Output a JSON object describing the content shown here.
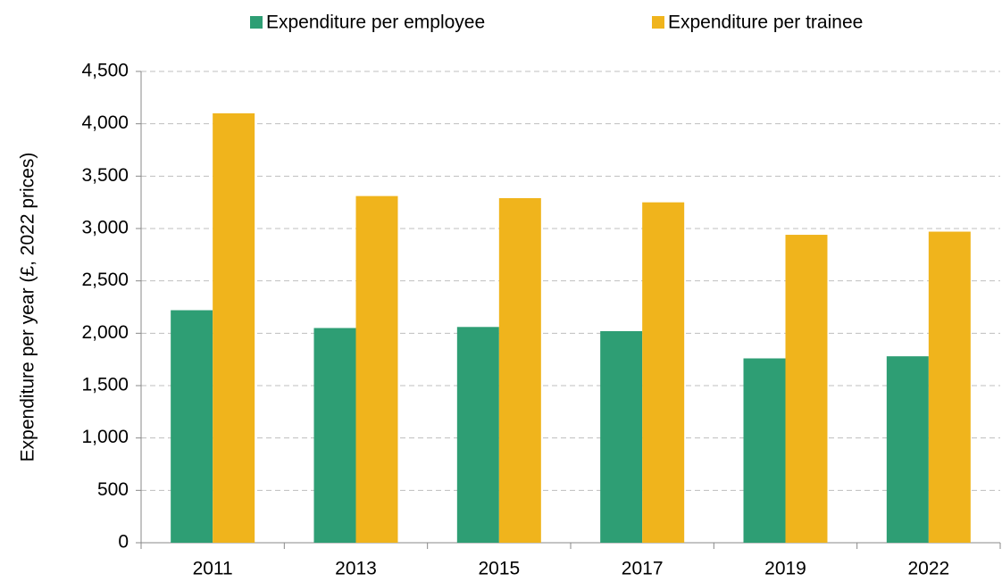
{
  "chart_data": {
    "type": "bar",
    "y_label": "Expenditure per year (£,  2022 prices)",
    "categories": [
      "2011",
      "2013",
      "2015",
      "2017",
      "2019",
      "2022"
    ],
    "series": [
      {
        "name": "Expenditure per employee",
        "color": "#2e9e74",
        "values": [
          2220,
          2050,
          2060,
          2020,
          1760,
          1780
        ]
      },
      {
        "name": "Expenditure per trainee",
        "color": "#f0b41c",
        "values": [
          4100,
          3310,
          3290,
          3250,
          2940,
          2970
        ]
      }
    ],
    "ylim": [
      0,
      4500
    ],
    "yticks": [
      0,
      500,
      {
        "value": 1000,
        "label": "1,000"
      },
      {
        "value": 1500,
        "label": "1,500"
      },
      {
        "value": 2000,
        "label": "2,000"
      },
      {
        "value": 2500,
        "label": "2,500"
      },
      {
        "value": 3000,
        "label": "3,000"
      },
      {
        "value": 3500,
        "label": "3,500"
      },
      {
        "value": 4000,
        "label": "4,000"
      },
      {
        "value": 4500,
        "label": "4,500"
      }
    ],
    "grid": true,
    "legend": "top"
  }
}
